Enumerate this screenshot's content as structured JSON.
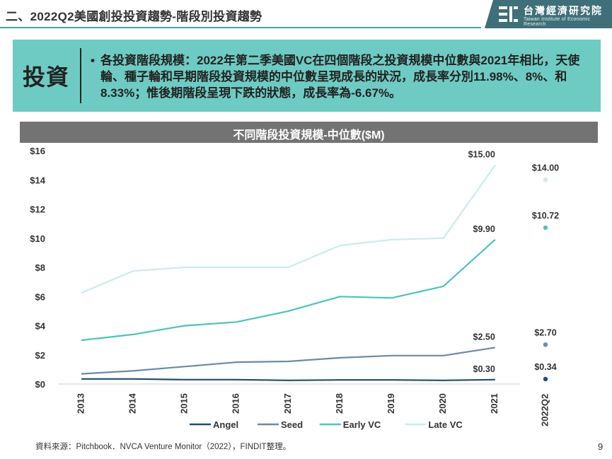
{
  "header": {
    "title": "二、2022Q2美國創投投資趨勢-階段別投資趨勢",
    "logo_text": "台灣經濟研究院",
    "logo_sub": "Taiwan Institute of Economic Research"
  },
  "summary": {
    "label": "投資",
    "text": "各投資階段規模：2022年第二季美國VC在四個階段之投資規模中位數與2021年相比，天使輪、種子輪和早期階段投資規模的中位數呈現成長的狀況，成長率分別11.98%、8%、和8.33%；惟後期階段呈現下跌的狀態，成長率為-6.67%。"
  },
  "chart_data": {
    "type": "line",
    "title": "不同階段投資規模-中位數($M)",
    "categories": [
      "2013",
      "2014",
      "2015",
      "2016",
      "2017",
      "2018",
      "2019",
      "2020",
      "2021"
    ],
    "extra_category": "2022Q2",
    "ylim": [
      0,
      16
    ],
    "yticks": [
      "$0",
      "$2",
      "$4",
      "$6",
      "$8",
      "$10",
      "$12",
      "$14",
      "$16"
    ],
    "grid": false,
    "legend_position": "bottom",
    "series": [
      {
        "name": "Angel",
        "color": "#1f4e6e",
        "values": [
          0.35,
          0.35,
          0.3,
          0.3,
          0.25,
          0.28,
          0.28,
          0.25,
          0.3
        ],
        "q2": 0.34,
        "label_2021": "$0.30",
        "label_q2": "$0.34"
      },
      {
        "name": "Seed",
        "color": "#6a8ba7",
        "values": [
          0.7,
          0.9,
          1.2,
          1.5,
          1.55,
          1.8,
          1.95,
          1.95,
          2.5
        ],
        "q2": 2.7,
        "label_2021": "$2.50",
        "label_q2": "$2.70"
      },
      {
        "name": "Early VC",
        "color": "#4fc2bb",
        "values": [
          3.0,
          3.4,
          4.0,
          4.25,
          5.0,
          6.0,
          5.9,
          6.7,
          9.9
        ],
        "q2": 10.72,
        "label_2021": "$9.90",
        "label_q2": "$10.72"
      },
      {
        "name": "Late VC",
        "color": "#c8ecec",
        "values": [
          6.25,
          7.75,
          8.0,
          8.0,
          8.0,
          9.5,
          9.9,
          10.0,
          15.0
        ],
        "q2": 14.0,
        "label_2021": "$15.00",
        "label_q2": "$14.00"
      }
    ]
  },
  "footer": {
    "source": "資料來源：Pitchbook．NVCA Venture Monitor（2022），FINDIT整理。",
    "page": "9"
  }
}
